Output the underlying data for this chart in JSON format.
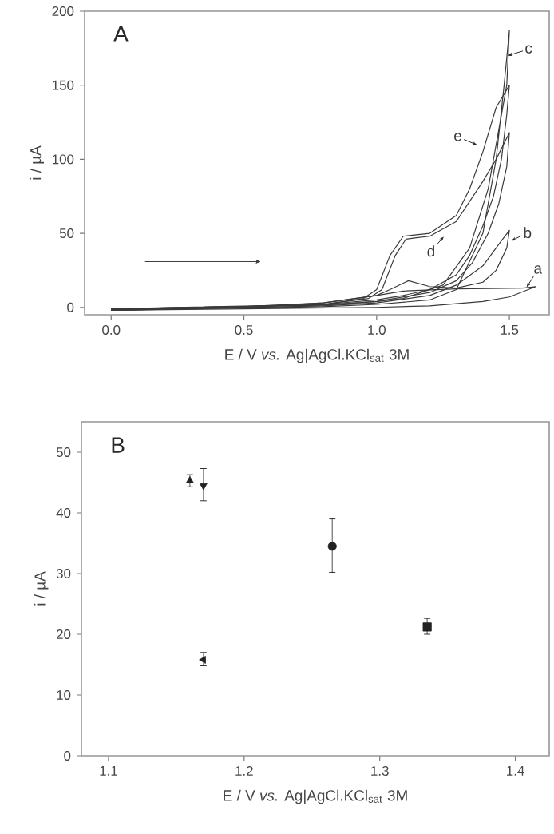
{
  "chart_data": [
    {
      "type": "line",
      "xlabel": "E / V *vs.* Ag|AgCl.KCl$_{sat}$ 3M",
      "ylabel": "i / µA",
      "xlim": [
        -0.1,
        1.65
      ],
      "ylim": [
        -5,
        200
      ],
      "xticks": [
        {
          "value": 0,
          "label": "0.0"
        },
        {
          "value": 0.5,
          "label": "0.5"
        },
        {
          "value": 1,
          "label": "1.0"
        },
        {
          "value": 1.5,
          "label": "1.5"
        }
      ],
      "yticks": [
        0,
        50,
        100,
        150,
        200
      ],
      "line_style": "solid",
      "marker": "none",
      "annotations": [
        "A",
        {
          "text": "a",
          "x": 1.565,
          "y": 13.6
        },
        {
          "text": "b",
          "x": 1.508,
          "y": 45
        },
        {
          "text": "c",
          "x": 1.494,
          "y": 170
        },
        {
          "text": "d",
          "x": 1.253,
          "y": 47.7
        },
        {
          "text": "e",
          "x": 1.378,
          "y": 109.7
        }
      ],
      "series": [
        {
          "color": "#3a3a3a",
          "x": [
            0,
            0.5,
            1.0,
            1.2,
            1.4,
            1.5,
            1.6,
            1.55,
            1.3,
            1.1,
            1.0,
            0.8,
            0.5,
            0
          ],
          "values": [
            -2,
            -1,
            0,
            1,
            4,
            7,
            14,
            13,
            12.5,
            11,
            8,
            3,
            0,
            -1.5
          ]
        },
        {
          "color": "#3a3a3a",
          "x": [
            0,
            0.8,
            1.0,
            1.2,
            1.3,
            1.4,
            1.47,
            1.5,
            1.49,
            1.45,
            1.4,
            1.3,
            1.2,
            1.12,
            1.05,
            1.0,
            0.8,
            0.5,
            0
          ],
          "values": [
            -2,
            1,
            3,
            8,
            15,
            28,
            45,
            52,
            40,
            25,
            17,
            13,
            14,
            18,
            12,
            8,
            3,
            0.5,
            -1
          ]
        },
        {
          "color": "#3a3a3a",
          "x": [
            0,
            0.8,
            1.0,
            1.2,
            1.3,
            1.4,
            1.45,
            1.48,
            1.5,
            1.49,
            1.46,
            1.42,
            1.35,
            1.25,
            1.1,
            1.0,
            0.8,
            0
          ],
          "values": [
            -2,
            0.5,
            2,
            5,
            12,
            50,
            100,
            150,
            187,
            150,
            120,
            80,
            40,
            15,
            6,
            4,
            1.5,
            -1
          ]
        },
        {
          "color": "#3a3a3a",
          "x": [
            0,
            0.8,
            0.97,
            1.02,
            1.07,
            1.11,
            1.15,
            1.2,
            1.3,
            1.4,
            1.45,
            1.5,
            1.49,
            1.46,
            1.42,
            1.36,
            1.3,
            1.2,
            1.1,
            1.0,
            0.8,
            0
          ],
          "values": [
            -2,
            2,
            6,
            12,
            35,
            46,
            47,
            48,
            58,
            85,
            100,
            118,
            95,
            70,
            50,
            30,
            18,
            10,
            7,
            4,
            1.5,
            -1
          ]
        },
        {
          "color": "#3a3a3a",
          "x": [
            0,
            0.8,
            0.95,
            1.0,
            1.05,
            1.1,
            1.15,
            1.2,
            1.3,
            1.35,
            1.4,
            1.45,
            1.5,
            1.49,
            1.47,
            1.44,
            1.4,
            1.35,
            1.3,
            1.2,
            1.1,
            1.0,
            0.8,
            0
          ],
          "values": [
            -2,
            2,
            6,
            12,
            35,
            48,
            49,
            50,
            62,
            80,
            105,
            135,
            150,
            130,
            100,
            75,
            55,
            35,
            22,
            12,
            8,
            5,
            2,
            -1
          ]
        }
      ]
    },
    {
      "type": "scatter",
      "xlabel": "E / V *vs.* Ag|AgCl.KCl$_{sat}$ 3M",
      "ylabel": "i / µA",
      "xlim": [
        1.08,
        1.425
      ],
      "ylim": [
        0,
        55
      ],
      "xticks": [
        1.1,
        1.2,
        1.3,
        1.4
      ],
      "yticks": [
        0,
        10,
        20,
        30,
        40,
        50
      ],
      "annotations": [
        "B"
      ],
      "series": [
        {
          "color": "#222222",
          "marker": "triangle",
          "x": [
            1.16
          ],
          "values": [
            45.3
          ],
          "errors": [
            [
              44.3,
              46.3
            ]
          ]
        },
        {
          "color": "#222222",
          "marker": "triangle-down",
          "x": [
            1.17
          ],
          "values": [
            44.5
          ],
          "errors": [
            [
              42,
              47.3
            ]
          ]
        },
        {
          "color": "#222222",
          "marker": "circle",
          "x": [
            1.265
          ],
          "values": [
            34.5
          ],
          "errors": [
            [
              30.2,
              39
            ]
          ]
        },
        {
          "color": "#222222",
          "marker": "square",
          "x": [
            1.335
          ],
          "values": [
            21.2
          ],
          "errors": [
            [
              20,
              22.6
            ]
          ]
        },
        {
          "color": "#222222",
          "marker": "triangle-left",
          "x": [
            1.17
          ],
          "values": [
            15.8
          ],
          "errors": [
            [
              14.8,
              17
            ]
          ]
        }
      ]
    }
  ]
}
